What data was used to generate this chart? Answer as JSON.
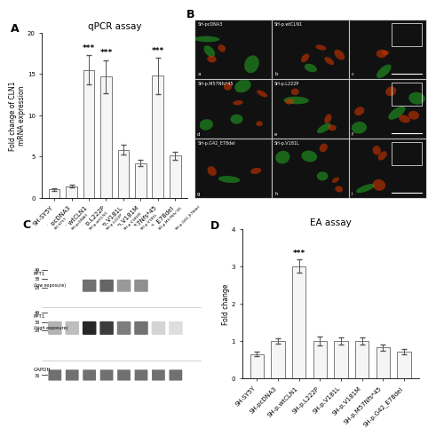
{
  "panel_A": {
    "title": "qPCR assay",
    "ylabel": "Fold change of CLN1\nmRNA expression",
    "categories": [
      "SH-SY5Y",
      "SH-pcDNA3",
      "SH-p.wtCLN1",
      "SH-p.L222P",
      "SH-p.V181L",
      "SH-p.V181M",
      "SH-p.M57Nfs*45",
      "SH-p.G42_E78del"
    ],
    "values": [
      1.0,
      1.4,
      15.5,
      14.7,
      5.8,
      4.2,
      14.8,
      5.1
    ],
    "errors": [
      0.15,
      0.2,
      1.8,
      2.0,
      0.6,
      0.4,
      2.2,
      0.5
    ],
    "sig": [
      "",
      "",
      "***",
      "***",
      "",
      "",
      "***",
      ""
    ],
    "ylim": [
      0,
      20
    ],
    "yticks": [
      0,
      5,
      10,
      15,
      20
    ],
    "bar_color": "#f5f5f5",
    "bar_edgecolor": "#666666"
  },
  "panel_D": {
    "title": "EA assay",
    "ylabel": "Fold change",
    "categories": [
      "SH-SY5Y",
      "SH-pcDNA3",
      "SH-p.wtCLN1",
      "SH-p.L222P",
      "SH-p.V181L",
      "SH-p.V181M",
      "SH-p.M57Nfs*45",
      "SH-p.G42_E78del"
    ],
    "values": [
      0.65,
      1.0,
      3.0,
      1.0,
      1.0,
      1.0,
      0.82,
      0.72
    ],
    "errors": [
      0.06,
      0.08,
      0.18,
      0.12,
      0.1,
      0.1,
      0.08,
      0.07
    ],
    "sig": [
      "",
      "",
      "***",
      "",
      "",
      "",
      "",
      ""
    ],
    "ylim": [
      0,
      4
    ],
    "yticks": [
      0,
      1,
      2,
      3,
      4
    ],
    "bar_color": "#f5f5f5",
    "bar_edgecolor": "#666666"
  },
  "panel_C": {
    "lane_labels": [
      "SH-SY5Y",
      "SH-pcDNA3",
      "SH-p.wtCLN1",
      "SH-p.L222P",
      "SH-p.V181M",
      "SH-p.V181L",
      "SH-p.M57Nfs*45",
      "SH-p.G42_E78del"
    ],
    "mw_markers_low": [
      49,
      38,
      28
    ],
    "mw_markers_high": [
      49,
      38,
      28
    ],
    "mw_gapdh": [
      36
    ]
  },
  "label_fontsize": 5.5,
  "tick_fontsize": 5,
  "title_fontsize": 7.5,
  "sig_fontsize": 6.5
}
